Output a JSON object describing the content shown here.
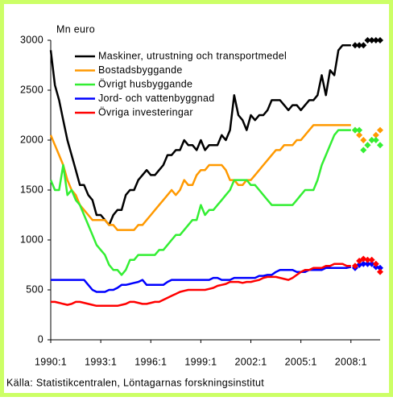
{
  "chart_data": {
    "type": "line",
    "y_label": "Mn euro",
    "source": "Källa: Statistikcentralen, Löntagarnas forskningsinstitut",
    "ylim": [
      0,
      3000
    ],
    "yticks": [
      0,
      500,
      1000,
      1500,
      2000,
      2500,
      3000
    ],
    "categories": [
      "1990:1",
      null,
      null,
      null,
      null,
      null,
      null,
      null,
      null,
      null,
      null,
      null,
      "1993:1",
      null,
      null,
      null,
      null,
      null,
      null,
      null,
      null,
      null,
      null,
      null,
      "1996:1",
      null,
      null,
      null,
      null,
      null,
      null,
      null,
      null,
      null,
      null,
      null,
      "1999:1",
      null,
      null,
      null,
      null,
      null,
      null,
      null,
      null,
      null,
      null,
      null,
      "2002:1",
      null,
      null,
      null,
      null,
      null,
      null,
      null,
      null,
      null,
      null,
      null,
      "2005:1",
      null,
      null,
      null,
      null,
      null,
      null,
      null,
      null,
      null,
      null,
      null,
      "2008:1",
      null,
      null,
      null,
      null,
      null,
      null,
      null
    ],
    "series": [
      {
        "name": "Maskiner, utrustning och transportmedel",
        "color": "#000000",
        "marker": "line",
        "values": [
          2900,
          2550,
          2400,
          2200,
          2000,
          1850,
          1700,
          1550,
          1550,
          1450,
          1400,
          1250,
          1250,
          1200,
          1150,
          1250,
          1300,
          1300,
          1450,
          1500,
          1500,
          1600,
          1650,
          1700,
          1650,
          1650,
          1700,
          1750,
          1850,
          1850,
          1900,
          1900,
          2000,
          1950,
          1950,
          1900,
          2000,
          1900,
          1950,
          1950,
          1950,
          2050,
          2000,
          2100,
          2450,
          2250,
          2200,
          2100,
          2250,
          2200,
          2250,
          2250,
          2300,
          2400,
          2400,
          2400,
          2350,
          2300,
          2350,
          2350,
          2300,
          2350,
          2400,
          2400,
          2450,
          2650,
          2450,
          2700,
          2650,
          2900,
          2950,
          2950,
          2950,
          null,
          null,
          null,
          null,
          null,
          null,
          null
        ]
      },
      {
        "name": "Bostadsbyggande",
        "color": "#ff9900",
        "marker": "line",
        "values": [
          2050,
          1950,
          1850,
          1750,
          1600,
          1500,
          1450,
          1350,
          1300,
          1250,
          1200,
          1200,
          1200,
          1200,
          1150,
          1150,
          1100,
          1100,
          1100,
          1100,
          1100,
          1150,
          1150,
          1200,
          1250,
          1300,
          1350,
          1400,
          1450,
          1500,
          1450,
          1500,
          1600,
          1550,
          1550,
          1650,
          1700,
          1700,
          1750,
          1750,
          1750,
          1750,
          1700,
          1600,
          1600,
          1550,
          1550,
          1600,
          1600,
          1650,
          1700,
          1750,
          1800,
          1850,
          1900,
          1900,
          1950,
          1950,
          1950,
          2000,
          2000,
          2050,
          2100,
          2150,
          2150,
          2150,
          2150,
          2150,
          2150,
          2150,
          2150,
          2150,
          2150,
          null,
          null,
          null,
          null,
          null,
          null,
          null
        ]
      },
      {
        "name": "Övrigt husbyggande",
        "color": "#33ee33",
        "marker": "line",
        "values": [
          1600,
          1500,
          1500,
          1750,
          1450,
          1500,
          1400,
          1350,
          1250,
          1150,
          1050,
          950,
          900,
          850,
          750,
          700,
          700,
          650,
          700,
          800,
          800,
          850,
          850,
          850,
          850,
          850,
          900,
          900,
          950,
          1000,
          1050,
          1050,
          1100,
          1150,
          1200,
          1200,
          1350,
          1250,
          1300,
          1300,
          1350,
          1400,
          1450,
          1500,
          1600,
          1600,
          1600,
          1600,
          1550,
          1550,
          1500,
          1450,
          1400,
          1350,
          1350,
          1350,
          1350,
          1350,
          1350,
          1400,
          1450,
          1500,
          1500,
          1500,
          1600,
          1750,
          1850,
          1950,
          2050,
          2100,
          2100,
          2100,
          2100,
          null,
          null,
          null,
          null,
          null,
          null,
          null
        ]
      },
      {
        "name": "Jord- och vattenbyggnad",
        "color": "#0000ff",
        "marker": "line",
        "values": [
          600,
          600,
          600,
          600,
          600,
          600,
          600,
          600,
          600,
          550,
          500,
          480,
          480,
          480,
          500,
          500,
          520,
          550,
          550,
          560,
          570,
          580,
          600,
          550,
          550,
          550,
          550,
          550,
          580,
          600,
          600,
          600,
          600,
          600,
          600,
          600,
          600,
          600,
          600,
          620,
          620,
          600,
          600,
          600,
          620,
          620,
          620,
          620,
          620,
          620,
          640,
          640,
          650,
          650,
          680,
          700,
          700,
          700,
          700,
          680,
          680,
          680,
          700,
          700,
          700,
          700,
          720,
          720,
          720,
          720,
          720,
          720,
          730,
          null,
          null,
          null,
          null,
          null,
          null,
          null
        ]
      },
      {
        "name": "Övriga investeringar",
        "color": "#ff0000",
        "marker": "line",
        "values": [
          380,
          380,
          370,
          360,
          350,
          360,
          380,
          380,
          370,
          360,
          350,
          340,
          340,
          340,
          340,
          340,
          340,
          350,
          360,
          380,
          380,
          370,
          360,
          360,
          370,
          380,
          380,
          400,
          420,
          440,
          460,
          480,
          490,
          500,
          500,
          500,
          500,
          500,
          510,
          520,
          540,
          550,
          560,
          580,
          580,
          580,
          570,
          580,
          580,
          590,
          600,
          620,
          630,
          630,
          630,
          620,
          610,
          600,
          620,
          650,
          680,
          700,
          700,
          720,
          720,
          720,
          740,
          740,
          760,
          760,
          760,
          740,
          740,
          null,
          null,
          null,
          null,
          null,
          null,
          null
        ]
      },
      {
        "color": "#000000",
        "marker": "diamond",
        "values": [
          null,
          null,
          null,
          null,
          null,
          null,
          null,
          null,
          null,
          null,
          null,
          null,
          null,
          null,
          null,
          null,
          null,
          null,
          null,
          null,
          null,
          null,
          null,
          null,
          null,
          null,
          null,
          null,
          null,
          null,
          null,
          null,
          null,
          null,
          null,
          null,
          null,
          null,
          null,
          null,
          null,
          null,
          null,
          null,
          null,
          null,
          null,
          null,
          null,
          null,
          null,
          null,
          null,
          null,
          null,
          null,
          null,
          null,
          null,
          null,
          null,
          null,
          null,
          null,
          null,
          null,
          null,
          null,
          null,
          null,
          null,
          null,
          null,
          2950,
          2950,
          2950,
          3000,
          3000,
          3000,
          3000
        ]
      },
      {
        "color": "#ff9900",
        "marker": "diamond",
        "values": [
          null,
          null,
          null,
          null,
          null,
          null,
          null,
          null,
          null,
          null,
          null,
          null,
          null,
          null,
          null,
          null,
          null,
          null,
          null,
          null,
          null,
          null,
          null,
          null,
          null,
          null,
          null,
          null,
          null,
          null,
          null,
          null,
          null,
          null,
          null,
          null,
          null,
          null,
          null,
          null,
          null,
          null,
          null,
          null,
          null,
          null,
          null,
          null,
          null,
          null,
          null,
          null,
          null,
          null,
          null,
          null,
          null,
          null,
          null,
          null,
          null,
          null,
          null,
          null,
          null,
          null,
          null,
          null,
          null,
          null,
          null,
          null,
          null,
          2100,
          2050,
          2000,
          1950,
          2000,
          2050,
          2100
        ]
      },
      {
        "color": "#33ee33",
        "marker": "diamond",
        "values": [
          null,
          null,
          null,
          null,
          null,
          null,
          null,
          null,
          null,
          null,
          null,
          null,
          null,
          null,
          null,
          null,
          null,
          null,
          null,
          null,
          null,
          null,
          null,
          null,
          null,
          null,
          null,
          null,
          null,
          null,
          null,
          null,
          null,
          null,
          null,
          null,
          null,
          null,
          null,
          null,
          null,
          null,
          null,
          null,
          null,
          null,
          null,
          null,
          null,
          null,
          null,
          null,
          null,
          null,
          null,
          null,
          null,
          null,
          null,
          null,
          null,
          null,
          null,
          null,
          null,
          null,
          null,
          null,
          null,
          null,
          null,
          null,
          null,
          2100,
          2100,
          1900,
          1950,
          2000,
          2000,
          1950
        ]
      },
      {
        "color": "#0000ff",
        "marker": "diamond",
        "values": [
          null,
          null,
          null,
          null,
          null,
          null,
          null,
          null,
          null,
          null,
          null,
          null,
          null,
          null,
          null,
          null,
          null,
          null,
          null,
          null,
          null,
          null,
          null,
          null,
          null,
          null,
          null,
          null,
          null,
          null,
          null,
          null,
          null,
          null,
          null,
          null,
          null,
          null,
          null,
          null,
          null,
          null,
          null,
          null,
          null,
          null,
          null,
          null,
          null,
          null,
          null,
          null,
          null,
          null,
          null,
          null,
          null,
          null,
          null,
          null,
          null,
          null,
          null,
          null,
          null,
          null,
          null,
          null,
          null,
          null,
          null,
          null,
          null,
          720,
          750,
          760,
          760,
          760,
          730,
          720
        ]
      },
      {
        "color": "#ff0000",
        "marker": "diamond",
        "values": [
          null,
          null,
          null,
          null,
          null,
          null,
          null,
          null,
          null,
          null,
          null,
          null,
          null,
          null,
          null,
          null,
          null,
          null,
          null,
          null,
          null,
          null,
          null,
          null,
          null,
          null,
          null,
          null,
          null,
          null,
          null,
          null,
          null,
          null,
          null,
          null,
          null,
          null,
          null,
          null,
          null,
          null,
          null,
          null,
          null,
          null,
          null,
          null,
          null,
          null,
          null,
          null,
          null,
          null,
          null,
          null,
          null,
          null,
          null,
          null,
          null,
          null,
          null,
          null,
          null,
          null,
          null,
          null,
          null,
          null,
          null,
          null,
          null,
          740,
          790,
          810,
          800,
          800,
          760,
          680
        ]
      }
    ]
  }
}
